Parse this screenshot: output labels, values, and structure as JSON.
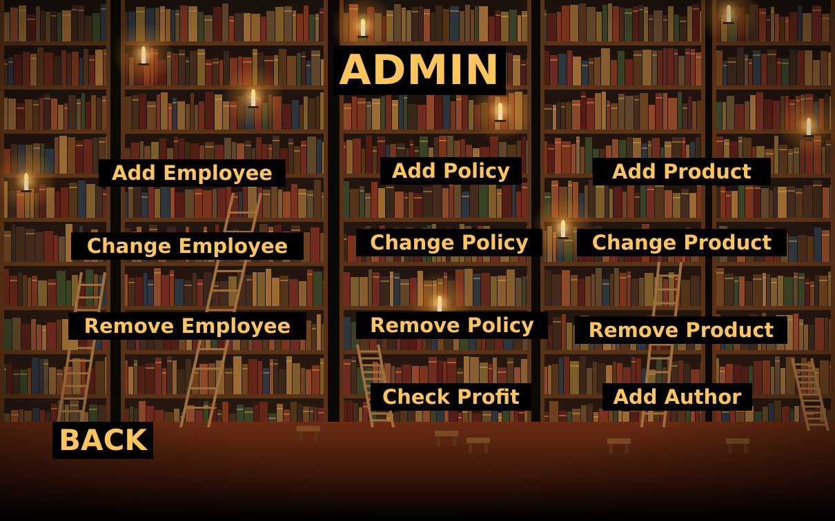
{
  "screen": {
    "title": "ADMIN",
    "back_label": "BACK"
  },
  "menu": {
    "employee": {
      "add": "Add Employee",
      "change": "Change Employee",
      "remove": "Remove Employee"
    },
    "policy": {
      "add": "Add Policy",
      "change": "Change Policy",
      "remove": "Remove Policy",
      "profit": "Check Profit"
    },
    "product": {
      "add": "Add Product",
      "change": "Change Product",
      "remove": "Remove Product",
      "author": "Add Author"
    }
  },
  "colors": {
    "label_text": "#fcc55a",
    "label_background": "#000000",
    "shelf_wood": "#5a3216",
    "floor": "#4a1e0c",
    "candle_glow": "#ffb347"
  }
}
